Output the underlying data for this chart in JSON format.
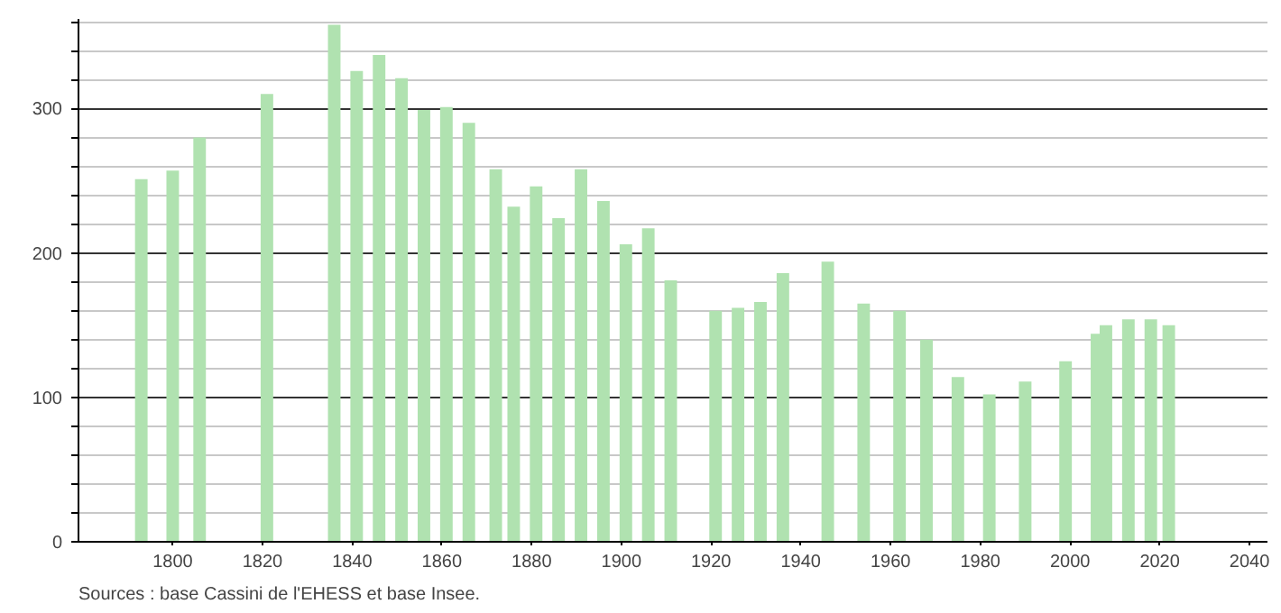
{
  "chart_data": {
    "type": "bar",
    "x": [
      1793,
      1800,
      1806,
      1821,
      1836,
      1841,
      1846,
      1851,
      1856,
      1861,
      1866,
      1872,
      1876,
      1881,
      1886,
      1891,
      1896,
      1901,
      1906,
      1911,
      1921,
      1926,
      1931,
      1936,
      1946,
      1954,
      1962,
      1968,
      1975,
      1982,
      1990,
      1999,
      2006,
      2008,
      2013,
      2018,
      2022
    ],
    "values": [
      251,
      257,
      280,
      310,
      358,
      326,
      337,
      321,
      299,
      301,
      290,
      258,
      232,
      246,
      224,
      258,
      236,
      206,
      217,
      181,
      160,
      162,
      166,
      186,
      194,
      165,
      160,
      140,
      114,
      102,
      111,
      125,
      144,
      150,
      154,
      154,
      150
    ],
    "color": "#b0e2b0",
    "xlim": [
      1779,
      2044
    ],
    "xticks": [
      1800,
      1820,
      1840,
      1860,
      1880,
      1900,
      1920,
      1940,
      1960,
      1980,
      2000,
      2020,
      2040
    ],
    "ylim": [
      0,
      362
    ],
    "yticks": [
      0,
      {
        "value": 20,
        "label": null
      },
      {
        "value": 40,
        "label": null
      },
      {
        "value": 60,
        "label": null
      },
      {
        "value": 80,
        "label": null
      },
      100,
      {
        "value": 120,
        "label": null
      },
      {
        "value": 140,
        "label": null
      },
      {
        "value": 160,
        "label": null
      },
      {
        "value": 180,
        "label": null
      },
      200,
      {
        "value": 220,
        "label": null
      },
      {
        "value": 240,
        "label": null
      },
      {
        "value": 260,
        "label": null
      },
      {
        "value": 280,
        "label": null
      },
      300,
      {
        "value": 320,
        "label": null
      },
      {
        "value": 340,
        "label": null
      },
      {
        "value": 360,
        "label": null
      }
    ],
    "grid": "y",
    "annotations": [
      "Sources : base Cassini de l'EHESS et base Insee."
    ]
  }
}
